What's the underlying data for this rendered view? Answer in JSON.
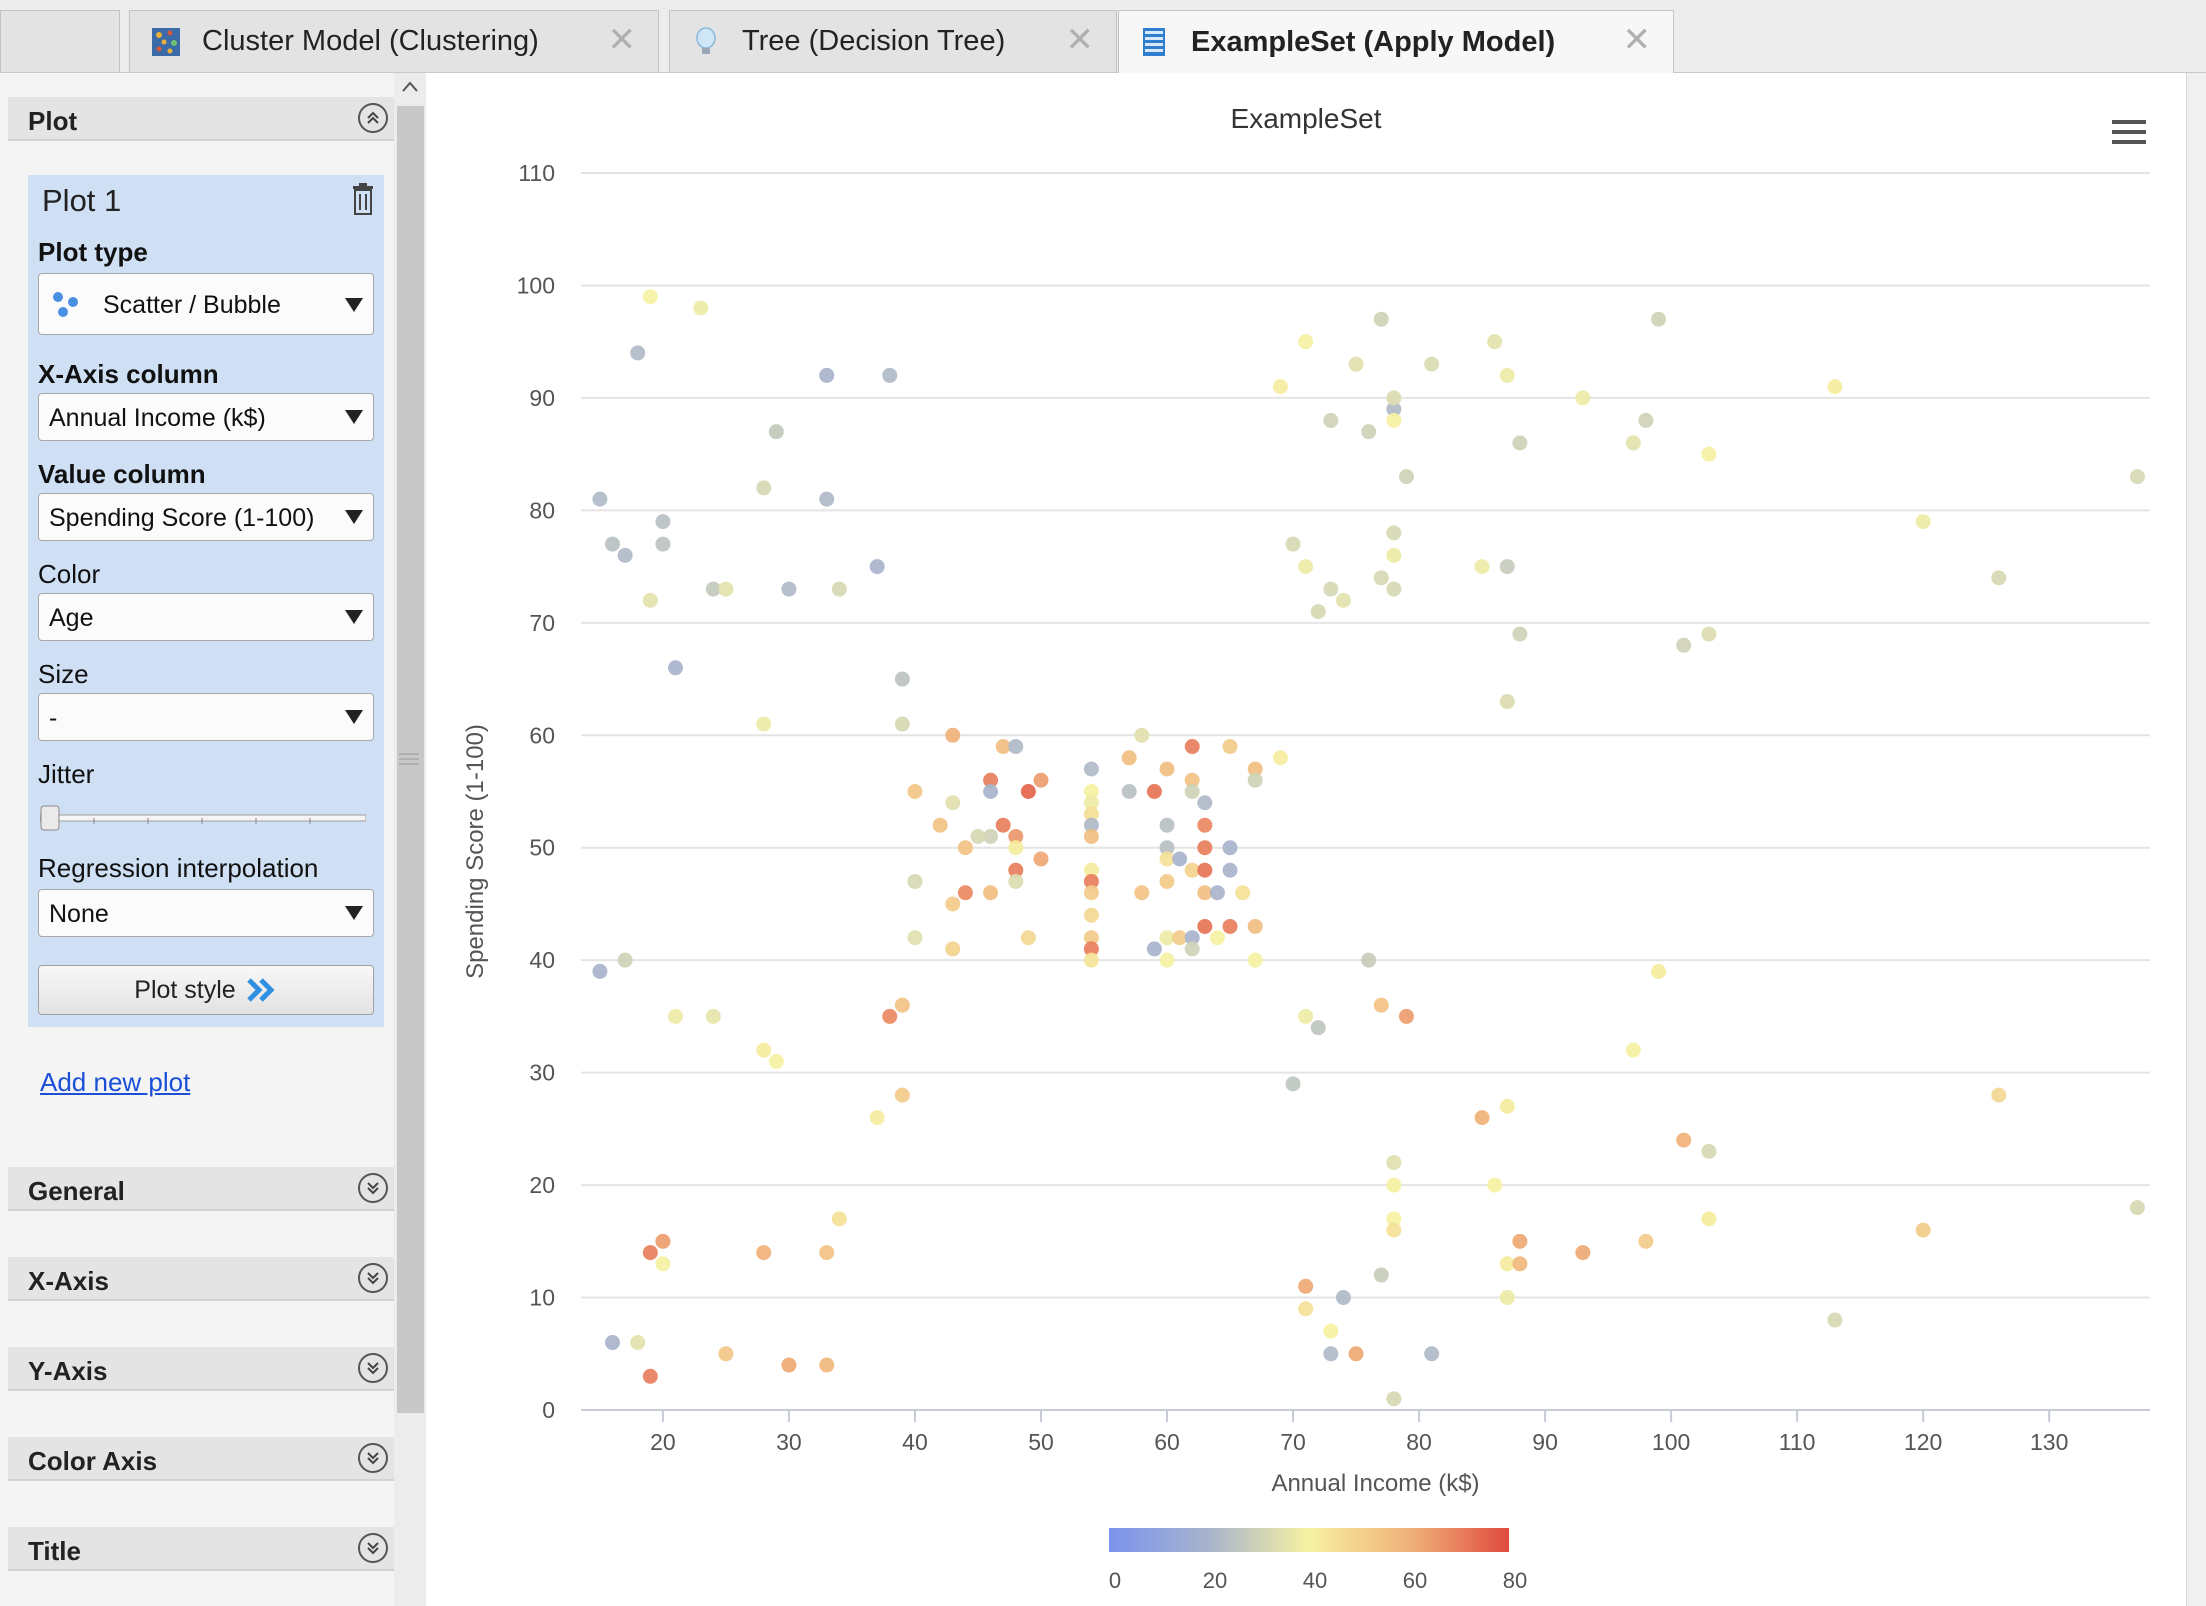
{
  "tabs": [
    {
      "label": "",
      "icon": "blank",
      "active": false
    },
    {
      "label": "Cluster Model (Clustering)",
      "icon": "cluster-model-icon",
      "active": false
    },
    {
      "label": "Tree (Decision Tree)",
      "icon": "lightbulb-icon",
      "active": false
    },
    {
      "label": "ExampleSet (Apply Model)",
      "icon": "exampleset-icon",
      "active": true
    }
  ],
  "sidebar": {
    "plot_section": "Plot",
    "plot_name": "Plot 1",
    "plot_type_label": "Plot type",
    "plot_type_value": "Scatter / Bubble",
    "x_axis_label": "X-Axis column",
    "x_axis_value": "Annual Income (k$)",
    "value_label": "Value column",
    "value_value": "Spending Score (1-100)",
    "color_label": "Color",
    "color_value": "Age",
    "size_label": "Size",
    "size_value": "-",
    "jitter_label": "Jitter",
    "jitter_value": 0,
    "regression_label": "Regression interpolation",
    "regression_value": "None",
    "plot_style_button": "Plot style",
    "add_new_plot": "Add new plot",
    "sections": [
      "General",
      "X-Axis",
      "Y-Axis",
      "Color Axis",
      "Title"
    ]
  },
  "colors": {
    "accent_blue": "#2f8fe0",
    "panel_blue": "#cfe0f5",
    "link": "#1a4fd6"
  },
  "chart_data": {
    "type": "scatter",
    "title": "ExampleSet",
    "xlabel": "Annual Income (k$)",
    "ylabel": "Spending Score (1-100)",
    "xlim": [
      13.5,
      138
    ],
    "ylim": [
      0,
      110
    ],
    "xticks": [
      20,
      30,
      40,
      50,
      60,
      70,
      80,
      90,
      100,
      110,
      120,
      130
    ],
    "yticks": [
      0,
      10,
      20,
      30,
      40,
      50,
      60,
      70,
      80,
      90,
      100,
      110
    ],
    "grid": true,
    "color_axis": {
      "label": "Age",
      "min": 0,
      "max": 80,
      "ticks": [
        0,
        20,
        40,
        60,
        80
      ],
      "stops": [
        "#7b93ee",
        "#a8b4cc",
        "#f6f1a2",
        "#f0b27a",
        "#e04b3e"
      ]
    },
    "points": [
      [
        19,
        99,
        40
      ],
      [
        23,
        98,
        38
      ],
      [
        18,
        94,
        22
      ],
      [
        33,
        92,
        20
      ],
      [
        38,
        92,
        22
      ],
      [
        15,
        81,
        22
      ],
      [
        16,
        77,
        24
      ],
      [
        17,
        76,
        22
      ],
      [
        20,
        79,
        24
      ],
      [
        20,
        77,
        25
      ],
      [
        28,
        82,
        32
      ],
      [
        29,
        87,
        27
      ],
      [
        33,
        81,
        22
      ],
      [
        37,
        75,
        20
      ],
      [
        30,
        73,
        22
      ],
      [
        24,
        73,
        27
      ],
      [
        25,
        73,
        35
      ],
      [
        34,
        73,
        32
      ],
      [
        19,
        72,
        35
      ],
      [
        21,
        66,
        20
      ],
      [
        39,
        65,
        25
      ],
      [
        39,
        61,
        32
      ],
      [
        28,
        61,
        38
      ],
      [
        15,
        39,
        20
      ],
      [
        17,
        40,
        30
      ],
      [
        21,
        35,
        38
      ],
      [
        24,
        35,
        36
      ],
      [
        28,
        32,
        42
      ],
      [
        29,
        31,
        40
      ],
      [
        37,
        26,
        42
      ],
      [
        39,
        28,
        52
      ],
      [
        34,
        17,
        45
      ],
      [
        33,
        14,
        55
      ],
      [
        28,
        14,
        60
      ],
      [
        30,
        4,
        62
      ],
      [
        33,
        4,
        58
      ],
      [
        25,
        5,
        54
      ],
      [
        20,
        15,
        64
      ],
      [
        19,
        14,
        70
      ],
      [
        19,
        3,
        70
      ],
      [
        20,
        13,
        40
      ],
      [
        18,
        6,
        35
      ],
      [
        16,
        6,
        20
      ],
      [
        71,
        95,
        40
      ],
      [
        77,
        97,
        30
      ],
      [
        86,
        95,
        35
      ],
      [
        99,
        97,
        30
      ],
      [
        69,
        91,
        42
      ],
      [
        75,
        93,
        34
      ],
      [
        81,
        93,
        33
      ],
      [
        87,
        92,
        38
      ],
      [
        93,
        90,
        38
      ],
      [
        113,
        91,
        42
      ],
      [
        73,
        88,
        30
      ],
      [
        76,
        87,
        30
      ],
      [
        78,
        89,
        22
      ],
      [
        78,
        88,
        40
      ],
      [
        78,
        90,
        33
      ],
      [
        97,
        86,
        35
      ],
      [
        98,
        88,
        30
      ],
      [
        88,
        86,
        30
      ],
      [
        103,
        85,
        40
      ],
      [
        137,
        83,
        32
      ],
      [
        79,
        83,
        30
      ],
      [
        70,
        77,
        32
      ],
      [
        71,
        75,
        38
      ],
      [
        73,
        73,
        32
      ],
      [
        74,
        72,
        35
      ],
      [
        72,
        71,
        32
      ],
      [
        77,
        74,
        32
      ],
      [
        78,
        76,
        38
      ],
      [
        78,
        73,
        32
      ],
      [
        78,
        78,
        32
      ],
      [
        85,
        75,
        38
      ],
      [
        87,
        75,
        28
      ],
      [
        88,
        69,
        30
      ],
      [
        87,
        63,
        33
      ],
      [
        101,
        68,
        30
      ],
      [
        103,
        69,
        33
      ],
      [
        120,
        79,
        38
      ],
      [
        126,
        74,
        32
      ],
      [
        70,
        29,
        26
      ],
      [
        72,
        34,
        26
      ],
      [
        71,
        35,
        38
      ],
      [
        76,
        40,
        28
      ],
      [
        77,
        36,
        55
      ],
      [
        79,
        35,
        64
      ],
      [
        97,
        32,
        40
      ],
      [
        99,
        39,
        42
      ],
      [
        85,
        26,
        60
      ],
      [
        87,
        27,
        42
      ],
      [
        86,
        20,
        40
      ],
      [
        78,
        22,
        34
      ],
      [
        78,
        20,
        40
      ],
      [
        78,
        17,
        40
      ],
      [
        78,
        16,
        45
      ],
      [
        77,
        12,
        28
      ],
      [
        74,
        10,
        22
      ],
      [
        71,
        11,
        62
      ],
      [
        71,
        9,
        45
      ],
      [
        73,
        7,
        40
      ],
      [
        73,
        5,
        22
      ],
      [
        75,
        5,
        62
      ],
      [
        81,
        5,
        22
      ],
      [
        78,
        1,
        32
      ],
      [
        87,
        13,
        42
      ],
      [
        88,
        13,
        58
      ],
      [
        87,
        10,
        38
      ],
      [
        88,
        15,
        62
      ],
      [
        93,
        14,
        62
      ],
      [
        98,
        15,
        52
      ],
      [
        101,
        24,
        60
      ],
      [
        103,
        23,
        32
      ],
      [
        103,
        17,
        42
      ],
      [
        113,
        8,
        32
      ],
      [
        120,
        16,
        52
      ],
      [
        126,
        28,
        48
      ],
      [
        137,
        18,
        32
      ],
      [
        40,
        55,
        54
      ],
      [
        42,
        52,
        55
      ],
      [
        43,
        54,
        34
      ],
      [
        43,
        60,
        60
      ],
      [
        44,
        50,
        55
      ],
      [
        46,
        56,
        70
      ],
      [
        46,
        55,
        20
      ],
      [
        47,
        59,
        56
      ],
      [
        47,
        52,
        70
      ],
      [
        48,
        51,
        65
      ],
      [
        48,
        50,
        42
      ],
      [
        48,
        59,
        22
      ],
      [
        49,
        55,
        75
      ],
      [
        50,
        56,
        64
      ],
      [
        46,
        51,
        30
      ],
      [
        45,
        51,
        32
      ],
      [
        40,
        47,
        32
      ],
      [
        43,
        45,
        52
      ],
      [
        44,
        46,
        68
      ],
      [
        46,
        46,
        56
      ],
      [
        48,
        48,
        70
      ],
      [
        48,
        47,
        33
      ],
      [
        50,
        49,
        62
      ],
      [
        43,
        41,
        50
      ],
      [
        40,
        42,
        34
      ],
      [
        38,
        35,
        68
      ],
      [
        39,
        36,
        55
      ],
      [
        49,
        42,
        48
      ],
      [
        54,
        57,
        22
      ],
      [
        54,
        55,
        40
      ],
      [
        54,
        54,
        38
      ],
      [
        54,
        53,
        46
      ],
      [
        54,
        52,
        22
      ],
      [
        54,
        51,
        56
      ],
      [
        54,
        48,
        42
      ],
      [
        54,
        47,
        70
      ],
      [
        54,
        46,
        52
      ],
      [
        54,
        44,
        48
      ],
      [
        54,
        42,
        52
      ],
      [
        54,
        41,
        70
      ],
      [
        54,
        40,
        44
      ],
      [
        57,
        58,
        56
      ],
      [
        57,
        55,
        24
      ],
      [
        59,
        55,
        72
      ],
      [
        58,
        60,
        34
      ],
      [
        60,
        57,
        56
      ],
      [
        60,
        52,
        24
      ],
      [
        60,
        50,
        24
      ],
      [
        60,
        49,
        45
      ],
      [
        60,
        47,
        52
      ],
      [
        61,
        49,
        20
      ],
      [
        58,
        46,
        55
      ],
      [
        59,
        41,
        20
      ],
      [
        60,
        40,
        40
      ],
      [
        60,
        42,
        38
      ],
      [
        61,
        42,
        52
      ],
      [
        62,
        42,
        20
      ],
      [
        62,
        41,
        30
      ],
      [
        62,
        59,
        70
      ],
      [
        62,
        56,
        55
      ],
      [
        62,
        55,
        30
      ],
      [
        62,
        48,
        50
      ],
      [
        63,
        54,
        22
      ],
      [
        63,
        52,
        68
      ],
      [
        63,
        50,
        70
      ],
      [
        63,
        48,
        72
      ],
      [
        63,
        46,
        56
      ],
      [
        63,
        43,
        72
      ],
      [
        64,
        46,
        20
      ],
      [
        64,
        42,
        40
      ],
      [
        65,
        59,
        52
      ],
      [
        65,
        50,
        20
      ],
      [
        65,
        48,
        20
      ],
      [
        65,
        43,
        70
      ],
      [
        66,
        46,
        45
      ],
      [
        67,
        57,
        56
      ],
      [
        67,
        56,
        30
      ],
      [
        67,
        43,
        56
      ],
      [
        67,
        40,
        40
      ],
      [
        69,
        58,
        42
      ]
    ]
  }
}
